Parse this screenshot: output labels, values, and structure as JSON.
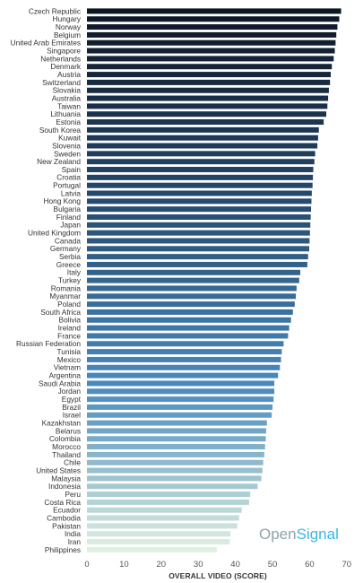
{
  "brand": {
    "part1": "Open",
    "part2": "Signal"
  },
  "chart_data": {
    "type": "bar",
    "orientation": "horizontal",
    "xlabel": "OVERALL VIDEO (SCORE)",
    "xlim": [
      0,
      70
    ],
    "xticks": [
      0,
      10,
      20,
      30,
      40,
      50,
      60,
      70
    ],
    "grid": false,
    "categories": [
      "Czech Republic",
      "Hungary",
      "Norway",
      "Belgium",
      "United Arab Emirates",
      "Singapore",
      "Netherlands",
      "Denmark",
      "Austria",
      "Switzerland",
      "Slovakia",
      "Australia",
      "Taiwan",
      "Lithuania",
      "Estonia",
      "South Korea",
      "Kuwait",
      "Slovenia",
      "Sweden",
      "New Zealand",
      "Spain",
      "Croatia",
      "Portugal",
      "Latvia",
      "Hong Kong",
      "Bulgaria",
      "Finland",
      "Japan",
      "United Kingdom",
      "Canada",
      "Germany",
      "Serbia",
      "Greece",
      "Italy",
      "Turkey",
      "Romania",
      "Myanmar",
      "Poland",
      "South Africa",
      "Bolivia",
      "Ireland",
      "France",
      "Russian Federation",
      "Tunisia",
      "Mexico",
      "Vietnam",
      "Argentina",
      "Saudi Arabia",
      "Jordan",
      "Egypt",
      "Brazil",
      "Israel",
      "Kazakhstan",
      "Belarus",
      "Colombia",
      "Morocco",
      "Thailand",
      "Chile",
      "United States",
      "Malaysia",
      "Indonesia",
      "Peru",
      "Costa Rica",
      "Ecuador",
      "Cambodia",
      "Pakistan",
      "India",
      "Iran",
      "Philippines"
    ],
    "values": [
      68.5,
      68.0,
      67.5,
      67.2,
      67.0,
      66.8,
      66.5,
      66.0,
      65.7,
      65.5,
      65.2,
      65.0,
      64.8,
      64.5,
      63.8,
      62.5,
      62.3,
      62.1,
      61.5,
      61.3,
      61.0,
      60.9,
      60.8,
      60.6,
      60.5,
      60.4,
      60.3,
      60.2,
      60.1,
      60.0,
      59.9,
      59.6,
      59.4,
      57.5,
      57.2,
      56.5,
      56.3,
      56.0,
      55.5,
      55.0,
      54.5,
      54.2,
      53.0,
      52.5,
      52.3,
      52.0,
      51.5,
      50.5,
      50.5,
      50.3,
      50.0,
      49.8,
      48.5,
      48.3,
      48.2,
      48.0,
      47.8,
      47.5,
      47.3,
      47.0,
      46.0,
      44.0,
      43.7,
      41.7,
      41.0,
      40.5,
      38.7,
      38.5,
      35.0
    ]
  }
}
